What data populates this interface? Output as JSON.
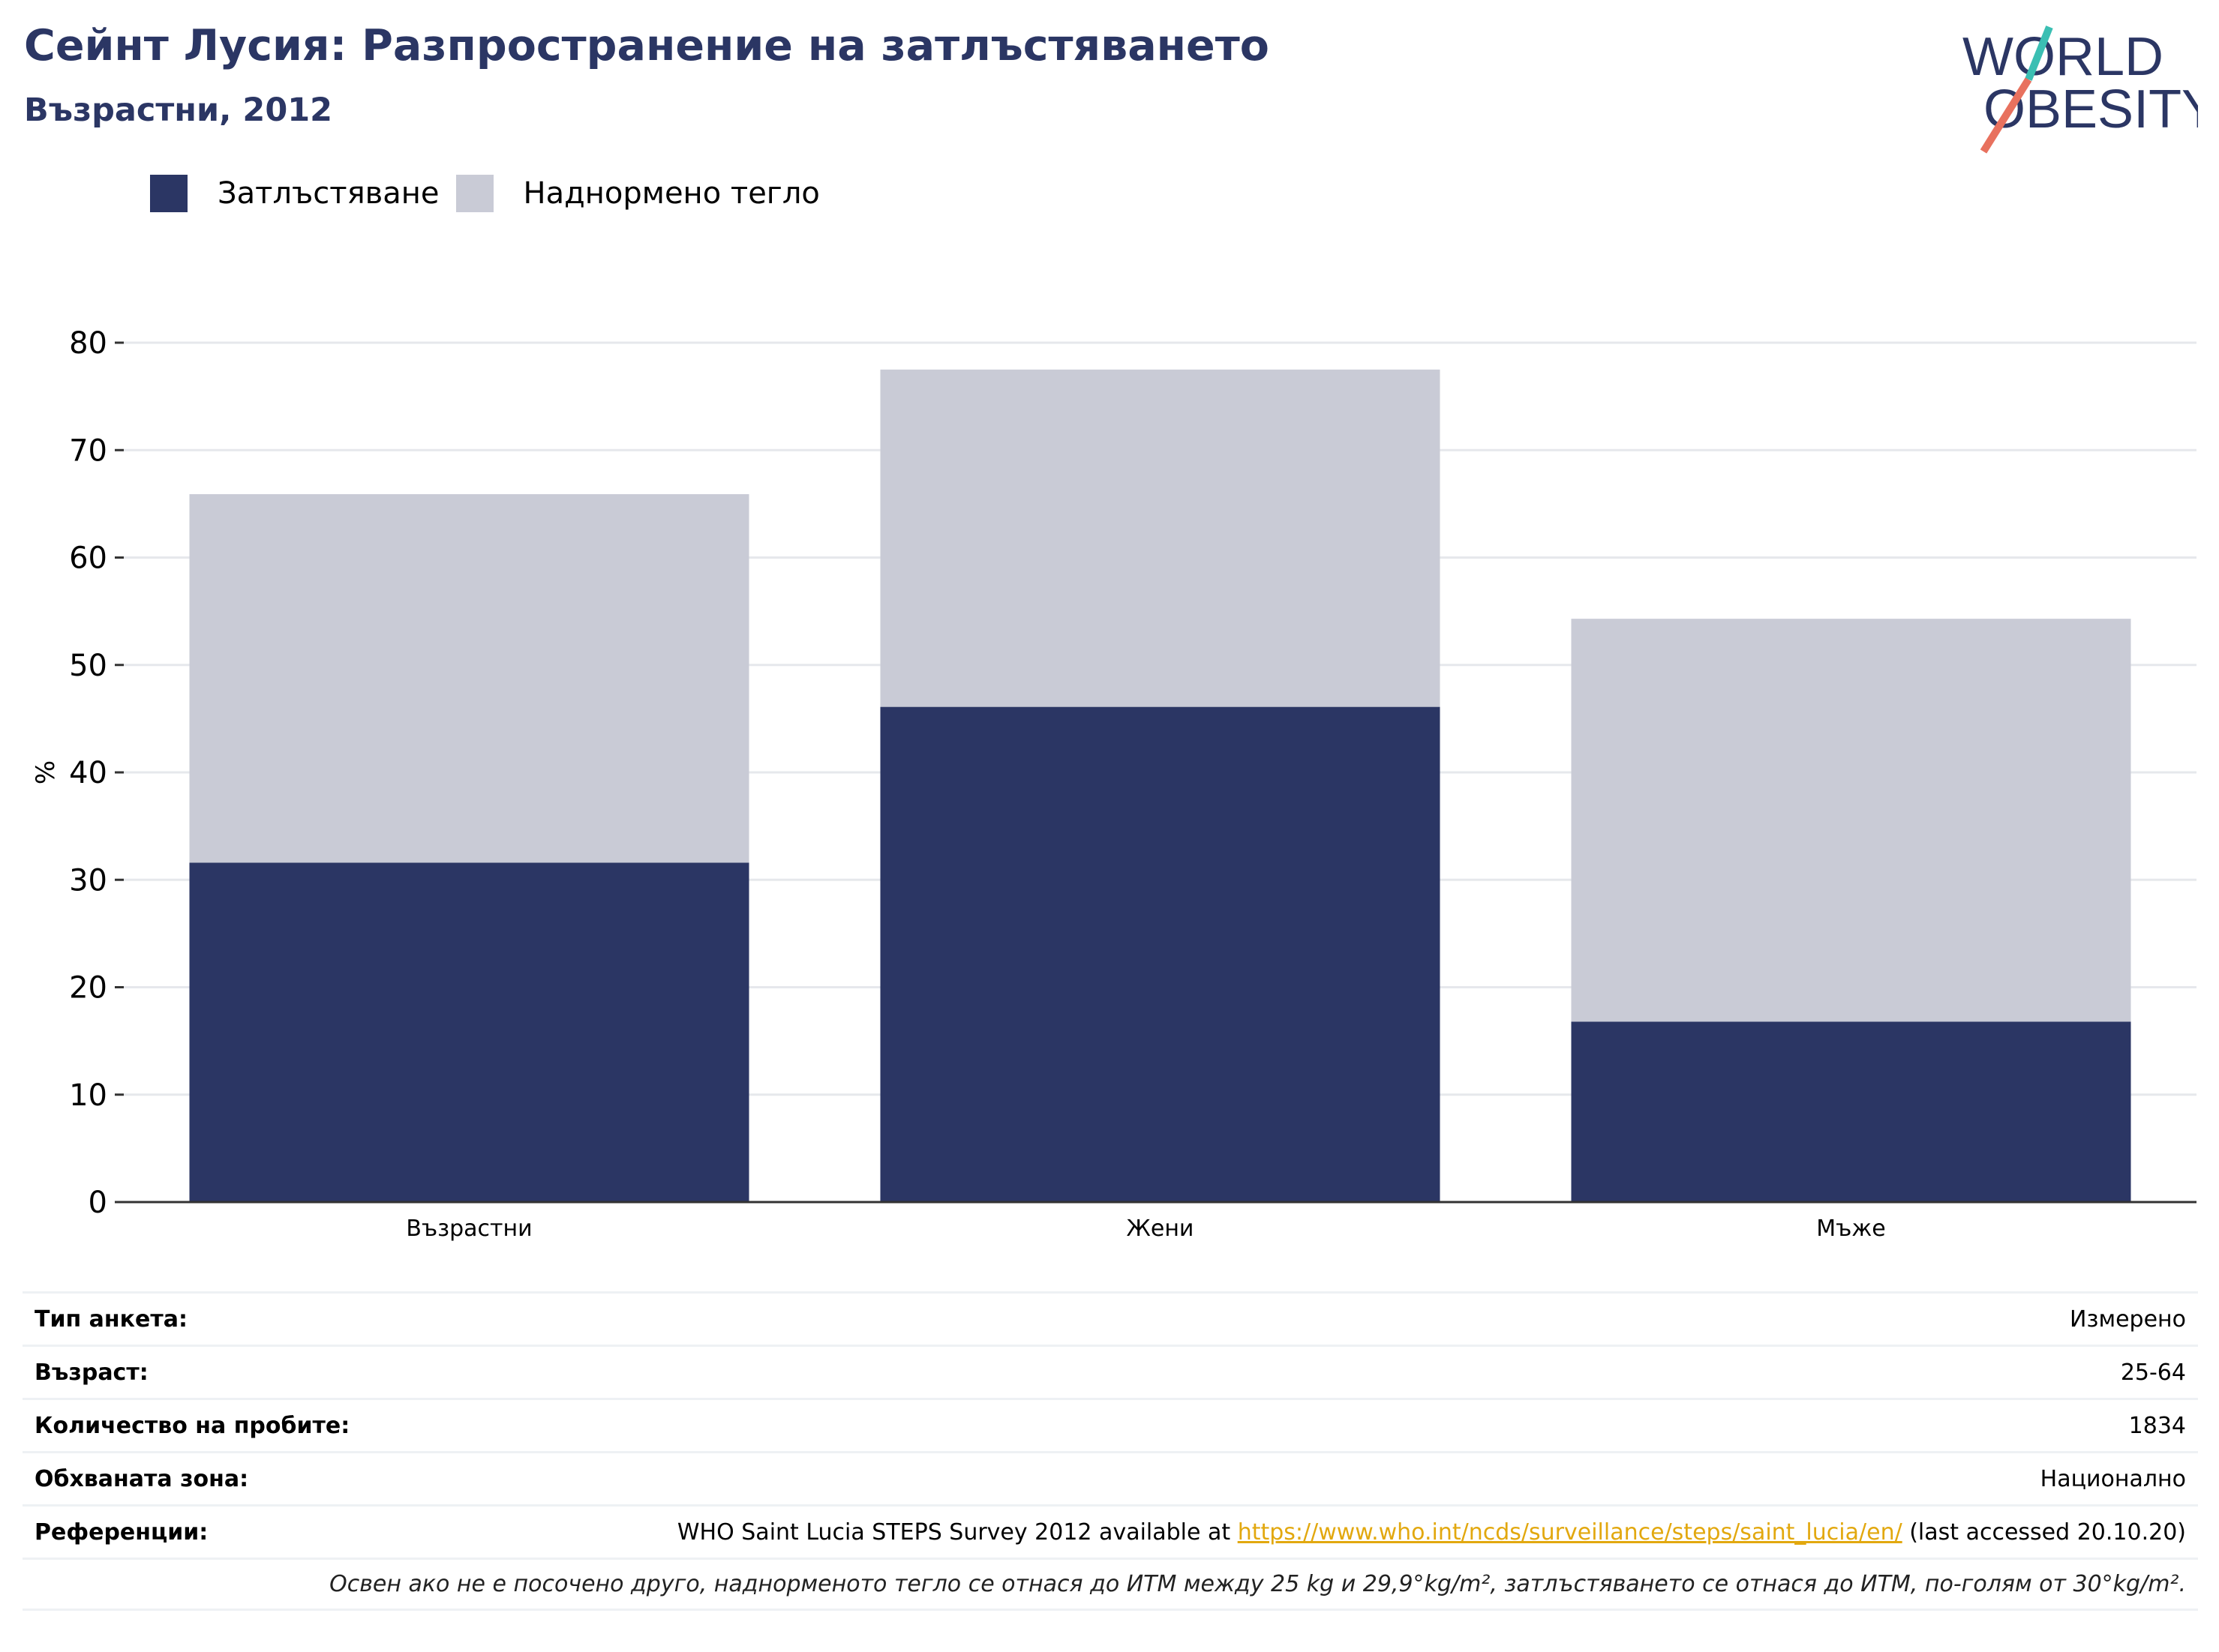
{
  "header": {
    "title": "Сейнт Лусия: Разпространение на затлъстяването",
    "subtitle": "Възрастни, 2012"
  },
  "logo": {
    "line1": "WORLD",
    "line2": "OBESITY"
  },
  "colors": {
    "obesity": "#2b3664",
    "overweight": "#c9cbd6",
    "grid": "#e6e8ec",
    "axis": "#333333",
    "link": "#e2a80f",
    "logo_text": "#2b3664",
    "logo_teal": "#3bbfb3",
    "logo_coral": "#e8715e"
  },
  "chart_data": {
    "type": "bar",
    "stacked": true,
    "categories": [
      "Възрастни",
      "Жени",
      "Мъже"
    ],
    "series": [
      {
        "name": "Затлъстяване",
        "values": [
          31.6,
          46.1,
          16.8
        ]
      },
      {
        "name": "Наднормено тегло",
        "values": [
          34.3,
          31.4,
          37.5
        ]
      }
    ],
    "ylabel": "%",
    "ylim": [
      0,
      80
    ],
    "yticks": [
      0,
      10,
      20,
      30,
      40,
      50,
      60,
      70,
      80
    ],
    "grid": true,
    "legend": "top-left"
  },
  "info": {
    "rows": [
      {
        "key": "Тип анкета:",
        "value": "Измерено"
      },
      {
        "key": "Възраст:",
        "value": "25-64"
      },
      {
        "key": "Количество на пробите:",
        "value": "1834"
      },
      {
        "key": "Обхваната зона:",
        "value": "Национално"
      }
    ],
    "reference": {
      "key": "Референции:",
      "prefix": "WHO Saint Lucia STEPS Survey 2012 available at ",
      "link": "https://www.who.int/ncds/surveillance/steps/saint_lucia/en/",
      "suffix": " (last accessed 20.10.20)"
    },
    "note": "Освен ако не е посочено друго, наднорменото тегло се отнася до ИТМ между 25 kg и 29,9°kg/m², затлъстяването се отнася до ИТМ, по-голям от 30°kg/m²."
  }
}
